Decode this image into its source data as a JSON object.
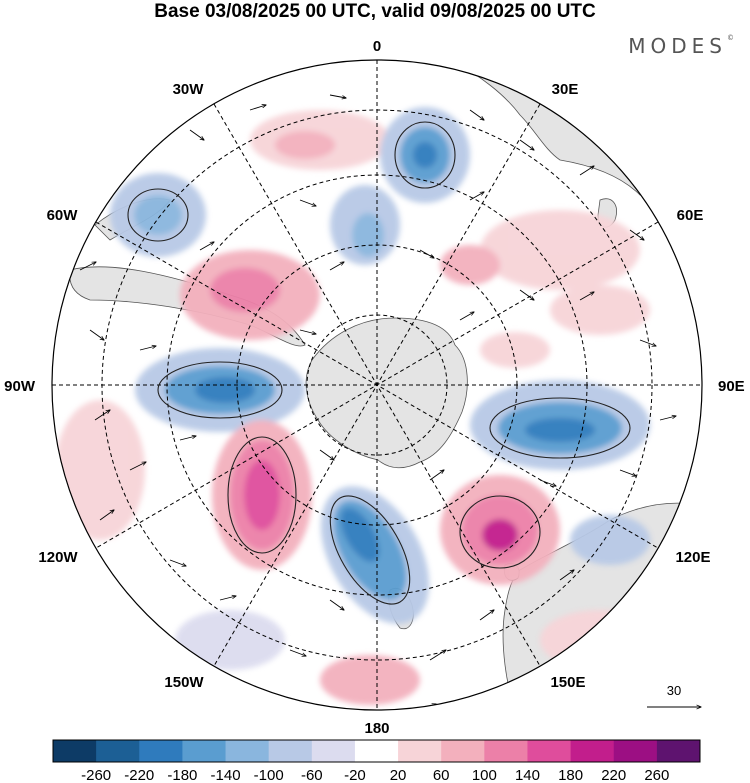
{
  "title": "Base 03/08/2025 00 UTC, valid 09/08/2025 00 UTC",
  "brand": "MODES",
  "brand_mark": "©",
  "lon_labels": {
    "top": "0",
    "top_right": "30E",
    "right_upper": "60E",
    "right": "90E",
    "right_lower": "120E",
    "bottom_right": "150E",
    "bottom": "180",
    "bottom_left": "150W",
    "left_lower": "120W",
    "left": "90W",
    "left_upper": "60W",
    "top_left": "30W"
  },
  "vector_scale": {
    "value": "30"
  },
  "colorbar": {
    "colors": [
      "#0d3b66",
      "#1c5f95",
      "#2f7bbd",
      "#5a9dd0",
      "#8ab6de",
      "#b8c9e6",
      "#dcdcef",
      "#ffffff",
      "#f7d4d8",
      "#f3b0bd",
      "#ec80a8",
      "#df4d9c",
      "#c21e8c",
      "#9c0f83",
      "#5e136f"
    ],
    "tick_labels": [
      "-260",
      "-220",
      "-180",
      "-140",
      "-100",
      "-60",
      "-20",
      "20",
      "60",
      "100",
      "140",
      "180",
      "220",
      "260"
    ]
  },
  "map_data": {
    "projection": "south-polar-stereographic",
    "field": "anomaly",
    "anomaly_centers": [
      {
        "name": "positive-anomaly-south-atlantic",
        "sign": "positive"
      },
      {
        "name": "negative-anomaly-atlantic-north",
        "sign": "negative"
      },
      {
        "name": "negative-anomaly-south-america",
        "sign": "negative"
      },
      {
        "name": "positive-anomaly-drake-passage",
        "sign": "positive"
      },
      {
        "name": "negative-anomaly-bellingshausen",
        "sign": "negative"
      },
      {
        "name": "positive-anomaly-south-pacific",
        "sign": "positive"
      },
      {
        "name": "negative-anomaly-ross-sea",
        "sign": "negative"
      },
      {
        "name": "positive-anomaly-south-australia",
        "sign": "positive"
      },
      {
        "name": "negative-anomaly-indian-ocean",
        "sign": "negative"
      },
      {
        "name": "positive-anomaly-indian-ocean-north",
        "sign": "positive"
      }
    ]
  }
}
